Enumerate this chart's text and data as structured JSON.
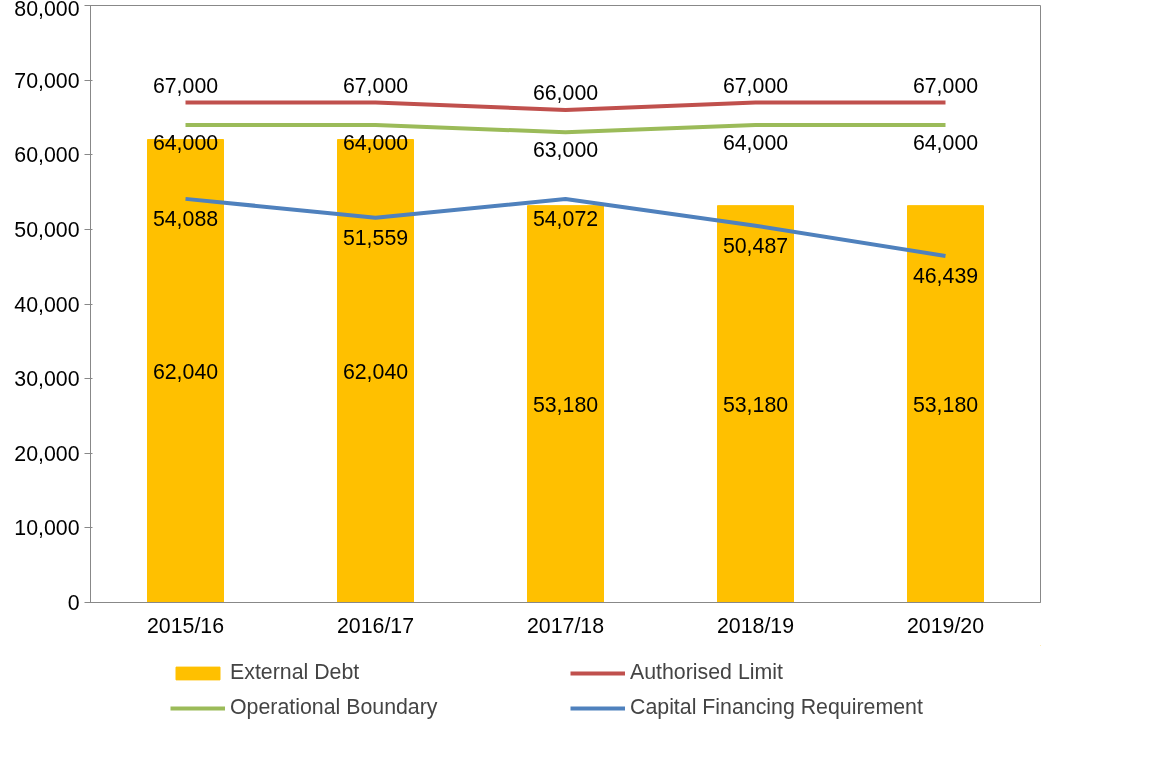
{
  "chart_data": {
    "type": "bar",
    "categories": [
      "2015/16",
      "2016/17",
      "2017/18",
      "2018/19",
      "2019/20"
    ],
    "series": [
      {
        "name": "External Debt",
        "color": "#ffc000",
        "values": [
          62040,
          62040,
          53180,
          53180,
          53180
        ],
        "value_labels": [
          "62,040",
          "62,040",
          "53,180",
          "53,180",
          "53,180"
        ]
      },
      {
        "name": "Authorised Limit",
        "type": "line",
        "color": "#c0504d",
        "values": [
          67000,
          67000,
          66000,
          67000,
          67000
        ],
        "value_labels": [
          "67,000",
          "67,000",
          "66,000",
          "67,000",
          "67,000"
        ]
      },
      {
        "name": "Operational Boundary",
        "type": "line",
        "color": "#9bbb59",
        "values": [
          64000,
          64000,
          63000,
          64000,
          64000
        ],
        "value_labels": [
          "64,000",
          "64,000",
          "63,000",
          "64,000",
          "64,000"
        ]
      },
      {
        "name": "Capital Financing Requirement",
        "type": "line",
        "color": "#4f81bd",
        "values": [
          54088,
          51559,
          54072,
          50487,
          46439
        ],
        "value_labels": [
          "54,088",
          "51,559",
          "54,072",
          "50,487",
          "46,439"
        ]
      }
    ],
    "ylim": [
      0,
      80000
    ],
    "yticks": [
      0,
      {
        "value": 10000,
        "label": "10,000"
      },
      {
        "value": 20000,
        "label": "20,000"
      },
      {
        "value": 30000,
        "label": "30,000"
      },
      {
        "value": 40000,
        "label": "40,000"
      },
      {
        "value": 50000,
        "label": "50,000"
      },
      {
        "value": 60000,
        "label": "60,000"
      },
      {
        "value": 70000,
        "label": "70,000"
      },
      {
        "value": 80000,
        "label": "80,000"
      }
    ],
    "legend": "bottom",
    "line_style": "solid"
  }
}
